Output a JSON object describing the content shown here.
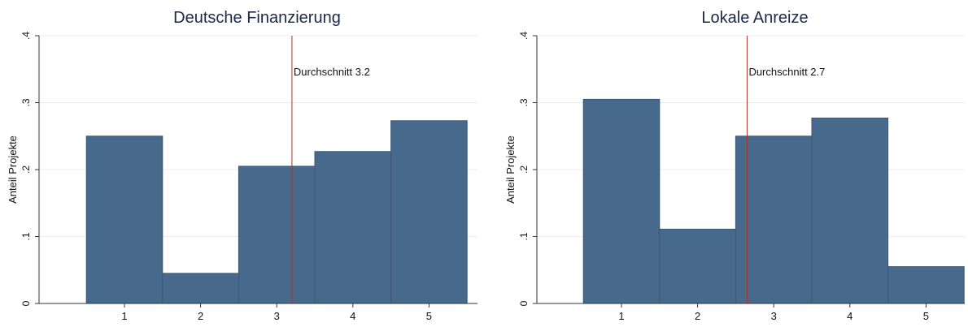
{
  "chart_data": [
    {
      "type": "bar",
      "title": "Deutsche Finanzierung",
      "xlabel": "",
      "ylabel": "Anteil Projekte",
      "categories": [
        "1",
        "2",
        "3",
        "4",
        "5"
      ],
      "values": [
        0.25,
        0.045,
        0.205,
        0.227,
        0.273
      ],
      "ylim": [
        0,
        0.4
      ],
      "yticks": [
        {
          "value": 0,
          "label": "0"
        },
        {
          "value": 0.1,
          "label": ".1"
        },
        {
          "value": 0.2,
          "label": ".2"
        },
        {
          "value": 0.3,
          "label": ".3"
        },
        {
          "value": 0.4,
          "label": ".4"
        }
      ],
      "reference_line": {
        "x": 3.2,
        "label": "Durchschnitt 3.2"
      },
      "grid": true
    },
    {
      "type": "bar",
      "title": "Lokale Anreize",
      "xlabel": "",
      "ylabel": "Anteil Projekte",
      "categories": [
        "1",
        "2",
        "3",
        "4",
        "5"
      ],
      "values": [
        0.305,
        0.111,
        0.25,
        0.277,
        0.055
      ],
      "ylim": [
        0,
        0.4
      ],
      "yticks": [
        {
          "value": 0,
          "label": "0"
        },
        {
          "value": 0.1,
          "label": ".1"
        },
        {
          "value": 0.2,
          "label": ".2"
        },
        {
          "value": 0.3,
          "label": ".3"
        },
        {
          "value": 0.4,
          "label": ".4"
        }
      ],
      "reference_line": {
        "x": 2.65,
        "label": "Durchschnitt 2.7"
      },
      "grid": true
    }
  ],
  "colors": {
    "bar_fill": "#476a8c",
    "bar_stroke": "#3a5875",
    "reference_line": "#a8322d",
    "title": "#1b2a4a",
    "grid": "#ececec",
    "axis": "#333333"
  }
}
